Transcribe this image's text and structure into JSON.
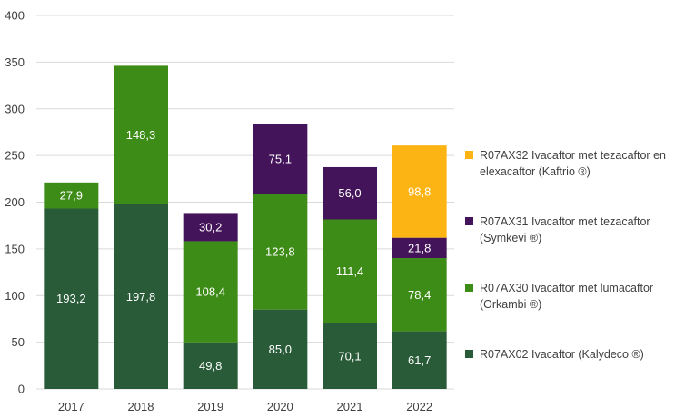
{
  "chart_data": {
    "type": "bar",
    "stacked": true,
    "categories": [
      "2017",
      "2018",
      "2019",
      "2020",
      "2021",
      "2022"
    ],
    "ylim": [
      0,
      400
    ],
    "yticks": [
      0,
      50,
      100,
      150,
      200,
      250,
      300,
      350,
      400
    ],
    "grid": true,
    "legend_position": "right",
    "series": [
      {
        "name": "R07AX02 Ivacaftor (Kalydeco ®)",
        "color": "#295b38",
        "values": [
          193.2,
          197.8,
          49.8,
          85.0,
          70.1,
          61.7
        ],
        "labels": [
          "193,2",
          "197,8",
          "49,8",
          "85,0",
          "70,1",
          "61,7"
        ]
      },
      {
        "name": "R07AX30 Ivacaftor met lumacaftor (Orkambi ®)",
        "color": "#3d8c17",
        "values": [
          27.9,
          148.3,
          108.4,
          123.8,
          111.4,
          78.4
        ],
        "labels": [
          "27,9",
          "148,3",
          "108,4",
          "123,8",
          "111,4",
          "78,4"
        ]
      },
      {
        "name": "R07AX31 Ivacaftor met tezacaftor (Symkevi ®)",
        "color": "#44145a",
        "values": [
          0,
          0,
          30.2,
          75.1,
          56.0,
          21.8
        ],
        "labels": [
          "",
          "",
          "30,2",
          "75,1",
          "56,0",
          "21,8"
        ]
      },
      {
        "name": "R07AX32 Ivacaftor met tezacaftor en elexacaftor (Kaftrio ®)",
        "color": "#fbb414",
        "values": [
          0,
          0,
          0,
          0,
          0,
          98.8
        ],
        "labels": [
          "",
          "",
          "",
          "",
          "",
          "98,8"
        ]
      }
    ],
    "legend": [
      {
        "line1": "R07AX32 Ivacaftor met tezacaftor en",
        "line2": "elexacaftor (Kaftrio ®)",
        "color": "#fbb414"
      },
      {
        "line1": "R07AX31 Ivacaftor met tezacaftor",
        "line2": "(Symkevi ®)",
        "color": "#44145a"
      },
      {
        "line1": "R07AX30 Ivacaftor met lumacaftor",
        "line2": "(Orkambi ®)",
        "color": "#3d8c17"
      },
      {
        "line1": "R07AX02 Ivacaftor (Kalydeco ®)",
        "line2": "",
        "color": "#295b38"
      }
    ]
  }
}
